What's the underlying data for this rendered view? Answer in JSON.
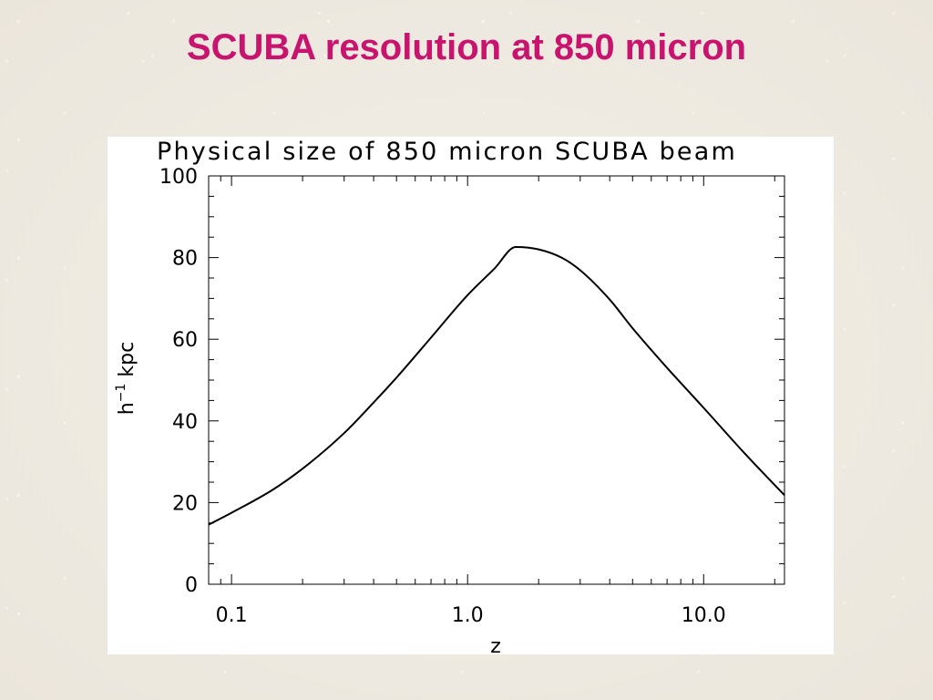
{
  "slide": {
    "title": "SCUBA resolution at 850 micron"
  },
  "colors": {
    "title": "#c8146e",
    "line": "#000000",
    "panel": "#ffffff"
  },
  "chart_data": {
    "type": "line",
    "title": "Physical size of 850 micron SCUBA beam",
    "xlabel": "z",
    "ylabel": "h",
    "ylabel_sup": "−1",
    "ylabel_unit": " kpc",
    "xscale": "log",
    "xlim": [
      0.08,
      22
    ],
    "ylim": [
      0,
      100
    ],
    "x_ticks": [
      {
        "v": 0.1,
        "label": "0.1"
      },
      {
        "v": 1.0,
        "label": "1.0"
      },
      {
        "v": 10.0,
        "label": "10.0"
      }
    ],
    "y_ticks": [
      {
        "v": 0,
        "label": "0"
      },
      {
        "v": 20,
        "label": "20"
      },
      {
        "v": 40,
        "label": "40"
      },
      {
        "v": 60,
        "label": "60"
      },
      {
        "v": 80,
        "label": "80"
      },
      {
        "v": 100,
        "label": "100"
      }
    ],
    "grid": false,
    "series": [
      {
        "x": [
          0.08,
          0.1,
          0.15,
          0.2,
          0.3,
          0.4,
          0.5,
          0.7,
          1.0,
          1.3,
          1.6,
          2.0,
          2.5,
          3.0,
          4.0,
          5.0,
          7.0,
          10.0,
          15.0,
          22.0
        ],
        "y": [
          14.6,
          17.5,
          23.2,
          28.3,
          37.0,
          44.5,
          50.6,
          60.4,
          70.8,
          77.3,
          82.6,
          82.0,
          80.0,
          76.9,
          69.7,
          62.7,
          53.0,
          43.2,
          31.9,
          21.8
        ]
      }
    ]
  }
}
